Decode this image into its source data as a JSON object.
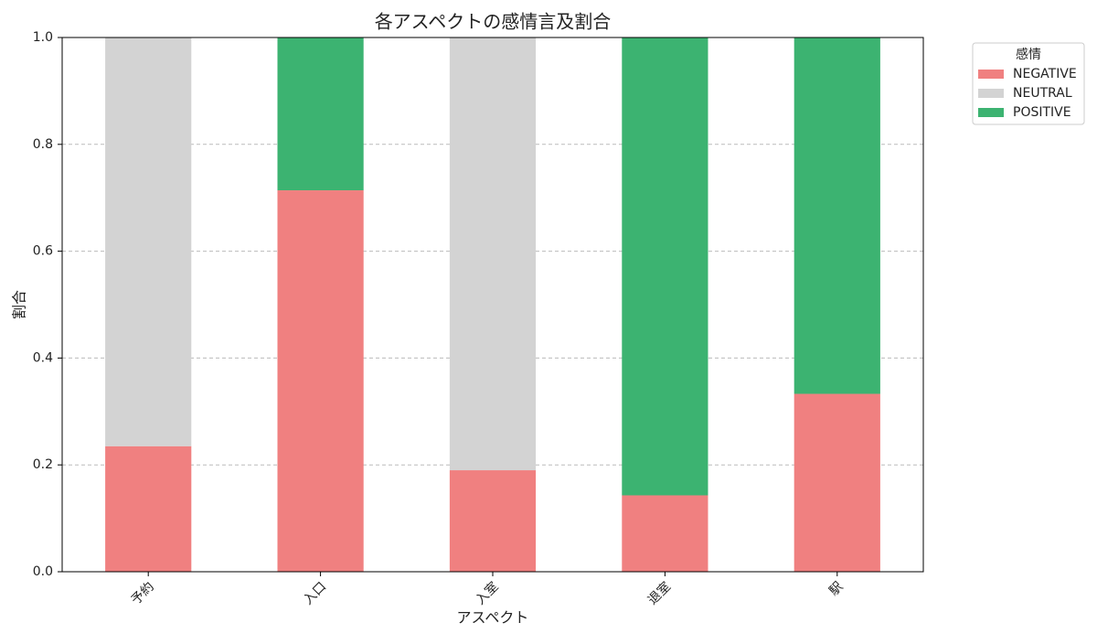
{
  "chart_data": {
    "type": "stacked_bar",
    "title": "各アスペクトの感情言及割合",
    "xlabel": "アスペクト",
    "ylabel": "割合",
    "categories": [
      "予約",
      "入口",
      "入室",
      "退室",
      "駅"
    ],
    "series": [
      {
        "name": "NEGATIVE",
        "color": "#f08080",
        "values": [
          0.235,
          0.714,
          0.19,
          0.143,
          0.333
        ]
      },
      {
        "name": "NEUTRAL",
        "color": "#d3d3d3",
        "values": [
          0.765,
          0,
          0.81,
          0,
          0
        ]
      },
      {
        "name": "POSITIVE",
        "color": "#3cb371",
        "values": [
          0,
          0.286,
          0,
          0.857,
          0.667
        ]
      }
    ],
    "ylim": [
      0,
      1
    ],
    "yticks": [
      {
        "value": 0,
        "label": "0.0"
      },
      0.2,
      0.4,
      0.6,
      0.8,
      {
        "value": 1,
        "label": "1.0"
      }
    ],
    "grid": true,
    "legend_title": "感情",
    "legend_position": "outside-upper-right"
  }
}
